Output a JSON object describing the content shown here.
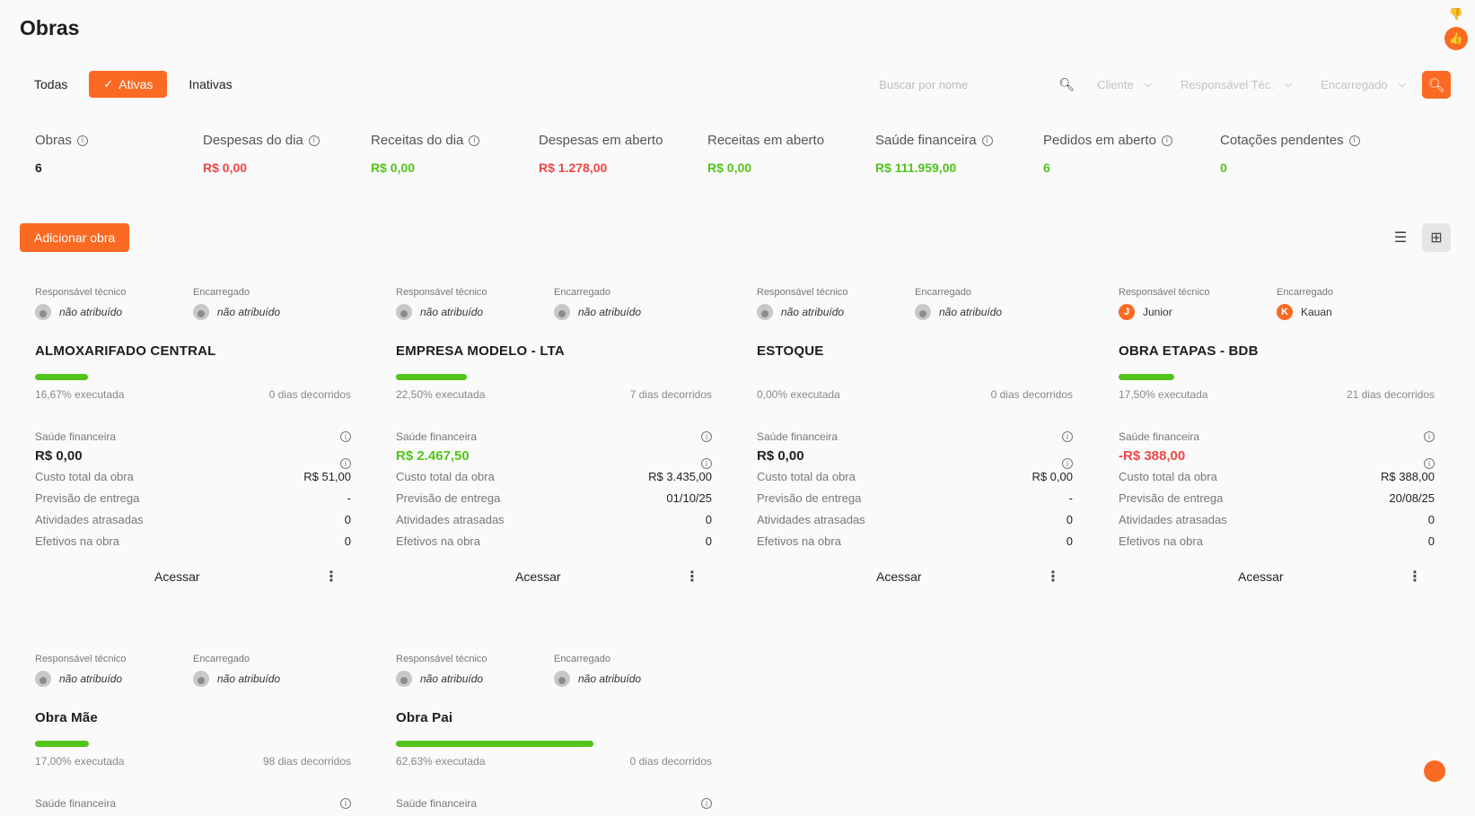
{
  "page": {
    "title": "Obras"
  },
  "filters": {
    "tabs": [
      {
        "label": "Todas",
        "active": false
      },
      {
        "label": "Ativas",
        "active": true
      },
      {
        "label": "Inativas",
        "active": false
      }
    ]
  },
  "toolbar": {
    "search_placeholder": "Buscar por nome",
    "cliente": "Cliente",
    "responsavel": "Responsável Téc.",
    "encarregado": "Encarregado"
  },
  "stats": [
    {
      "label": "Obras",
      "value": "6",
      "info": true,
      "color": "dark"
    },
    {
      "label": "Despesas do dia",
      "value": "R$ 0,00",
      "info": true,
      "color": "red"
    },
    {
      "label": "Receitas do dia",
      "value": "R$ 0,00",
      "info": true,
      "color": "green"
    },
    {
      "label": "Despesas em aberto",
      "value": "R$ 1.278,00",
      "info": false,
      "color": "red"
    },
    {
      "label": "Receitas em aberto",
      "value": "R$ 0,00",
      "info": false,
      "color": "green"
    },
    {
      "label": "Saúde financeira",
      "value": "R$ 111.959,00",
      "info": true,
      "color": "green"
    },
    {
      "label": "Pedidos em aberto",
      "value": "6",
      "info": true,
      "color": "green"
    },
    {
      "label": "Cotações pendentes",
      "value": "0",
      "info": true,
      "color": "green"
    }
  ],
  "actions": {
    "add_label": "Adicionar obra"
  },
  "labels": {
    "responsavel": "Responsável técnico",
    "encarregado": "Encarregado",
    "saude": "Saúde financeira",
    "custo": "Custo total da obra",
    "previsao": "Previsão de entrega",
    "atividades": "Atividades atrasadas",
    "efetivos": "Efetivos na obra",
    "acessar": "Acessar"
  },
  "cards": [
    {
      "title": "ALMOXARIFADO CENTRAL",
      "responsavel": "não atribuído",
      "responsavel_initial": "",
      "encarregado": "não atribuído",
      "encarregado_initial": "",
      "progress": 0.1667,
      "executada": "16,67% executada",
      "dias": "0 dias decorridos",
      "saude": "R$ 0,00",
      "saude_color": "dark",
      "custo": "R$ 51,00",
      "previsao": "-",
      "atividades": "0",
      "efetivos": "0"
    },
    {
      "title": "EMPRESA MODELO - LTA",
      "responsavel": "não atribuído",
      "responsavel_initial": "",
      "encarregado": "não atribuído",
      "encarregado_initial": "",
      "progress": 0.225,
      "executada": "22,50% executada",
      "dias": "7 dias decorridos",
      "saude": "R$ 2.467,50",
      "saude_color": "green",
      "custo": "R$ 3.435,00",
      "previsao": "01/10/25",
      "atividades": "0",
      "efetivos": "0"
    },
    {
      "title": "ESTOQUE",
      "responsavel": "não atribuído",
      "responsavel_initial": "",
      "encarregado": "não atribuído",
      "encarregado_initial": "",
      "progress": 0,
      "executada": "0,00% executada",
      "dias": "0 dias decorridos",
      "saude": "R$ 0,00",
      "saude_color": "dark",
      "custo": "R$ 0,00",
      "previsao": "-",
      "atividades": "0",
      "efetivos": "0"
    },
    {
      "title": "OBRA ETAPAS - BDB",
      "responsavel": "Junior",
      "responsavel_initial": "J",
      "encarregado": "Kauan",
      "encarregado_initial": "K",
      "progress": 0.175,
      "executada": "17,50% executada",
      "dias": "21 dias decorridos",
      "saude": "-R$ 388,00",
      "saude_color": "red",
      "custo": "R$ 388,00",
      "previsao": "20/08/25",
      "atividades": "0",
      "efetivos": "0"
    },
    {
      "title": "Obra Mãe",
      "responsavel": "não atribuído",
      "responsavel_initial": "",
      "encarregado": "não atribuído",
      "encarregado_initial": "",
      "progress": 0.17,
      "executada": "17,00% executada",
      "dias": "98 dias decorridos",
      "partial": true
    },
    {
      "title": "Obra Pai",
      "responsavel": "não atribuído",
      "responsavel_initial": "",
      "encarregado": "não atribuído",
      "encarregado_initial": "",
      "progress": 0.6263,
      "executada": "62,63% executada",
      "dias": "0 dias decorridos",
      "partial": true
    }
  ],
  "colors": {
    "accent": "#fb6a22",
    "green": "#52c41a",
    "red": "#f04545"
  }
}
